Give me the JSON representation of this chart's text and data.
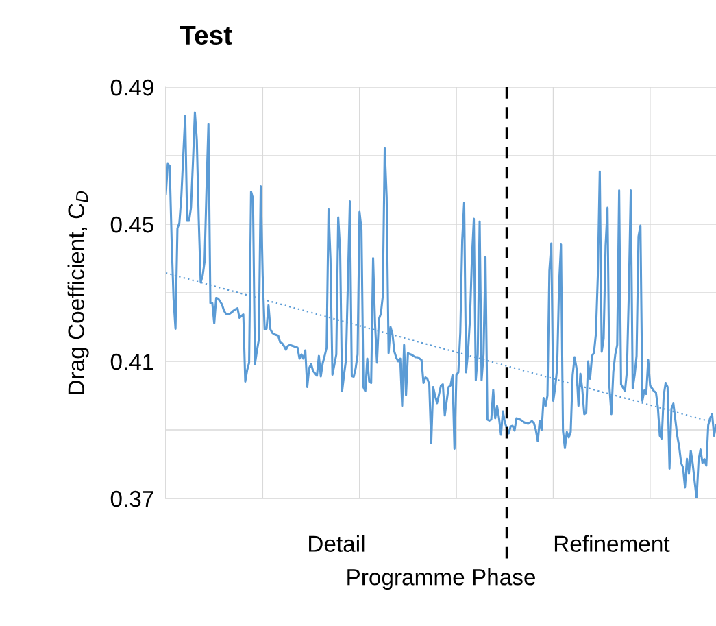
{
  "chart_data": {
    "type": "line",
    "title": "Test",
    "xlabel": "Programme Phase",
    "ylabel": "Drag Coefficient, C$_{D}$",
    "categories": [
      null,
      null,
      null,
      null,
      null,
      null,
      null,
      null,
      null,
      null,
      null,
      null,
      null,
      null,
      null,
      null,
      null,
      null,
      null,
      null,
      null,
      null,
      null,
      null,
      null,
      null,
      null,
      null,
      null,
      null,
      null,
      null,
      null,
      null,
      null,
      null,
      null,
      null,
      null,
      null,
      null,
      null,
      null,
      null,
      null,
      null,
      null,
      null,
      null,
      null,
      null,
      null,
      null,
      null,
      null,
      null,
      null,
      null,
      null,
      null,
      null,
      null,
      null,
      null,
      null,
      null,
      null,
      null,
      null,
      null,
      null,
      null,
      null,
      null,
      null,
      null,
      null,
      null,
      null,
      null,
      null,
      null,
      null,
      null,
      null,
      null,
      null,
      null,
      null,
      null,
      null,
      null,
      null,
      null,
      null,
      null,
      null,
      null,
      null,
      null,
      null,
      null,
      null,
      null,
      null,
      null,
      null,
      null,
      null,
      null,
      null,
      null,
      null,
      null,
      null,
      null,
      null,
      null,
      null,
      null,
      null,
      null,
      null,
      null,
      null,
      null,
      null,
      null,
      null,
      null,
      null,
      null,
      null,
      null,
      null,
      null,
      null,
      null,
      null,
      null,
      null,
      null,
      null,
      null,
      null,
      null,
      null,
      null,
      null,
      null,
      null,
      null,
      null,
      null,
      null,
      null,
      null,
      null,
      null,
      null,
      null,
      null,
      null,
      null,
      null,
      null,
      null,
      null,
      null,
      null,
      null,
      null,
      null,
      null,
      null,
      null,
      null,
      null,
      null,
      null,
      null,
      null,
      null,
      null,
      null,
      null,
      null,
      null,
      null,
      null,
      null,
      null,
      null,
      null,
      null,
      null,
      null,
      null,
      null,
      null,
      null,
      null,
      null,
      null,
      null,
      null,
      null,
      null,
      null,
      null,
      null,
      null,
      null,
      null,
      null,
      null,
      null,
      null,
      null,
      null,
      null,
      null,
      null,
      null,
      null,
      null,
      null,
      null,
      null,
      null,
      null,
      null,
      null,
      null,
      null,
      null,
      null,
      null,
      null,
      null,
      null,
      null,
      null,
      null,
      null,
      null,
      null,
      null,
      null,
      null,
      null,
      null,
      null,
      null,
      null,
      null,
      null,
      null,
      null,
      null,
      null,
      null,
      null,
      null,
      null,
      null,
      null,
      null,
      null,
      null,
      null,
      null,
      null,
      null,
      null,
      null,
      null,
      null,
      null,
      null,
      null,
      null,
      null,
      null,
      null
    ],
    "ylim": [
      0.37,
      0.49
    ],
    "yticks": [
      0.37,
      {
        "value": 0.39,
        "label": null
      },
      0.41,
      {
        "value": 0.43,
        "label": null
      },
      0.45,
      {
        "value": 0.47,
        "label": null
      },
      0.49
    ],
    "grid": true,
    "tick_labels": "y",
    "annotations": [
      "Detail",
      "Refinement"
    ],
    "ref_lines": [
      {
        "axis": "x",
        "color": "#000000",
        "line_style": "dashed"
      }
    ],
    "series": [
      {
        "color": "#5b9bd5",
        "line_style": "solid",
        "values": [
          0.4587,
          0.4676,
          0.467,
          0.4453,
          0.4282,
          0.4195,
          0.4488,
          0.4504,
          0.4579,
          0.47,
          0.4817,
          0.451,
          0.451,
          0.4548,
          0.468,
          0.4826,
          0.4746,
          0.4512,
          0.433,
          0.435,
          0.439,
          0.46,
          0.4792,
          0.427,
          0.427,
          0.4211,
          0.4285,
          0.4283,
          0.4275,
          0.4266,
          0.4248,
          0.4239,
          0.4239,
          0.4239,
          0.4243,
          0.4248,
          0.4252,
          0.4255,
          0.4227,
          0.4232,
          0.4237,
          0.4041,
          0.4075,
          0.4096,
          0.4595,
          0.4575,
          0.4092,
          0.413,
          0.4163,
          0.4611,
          0.435,
          0.4193,
          0.4195,
          0.4264,
          0.4193,
          0.4183,
          0.4179,
          0.4177,
          0.4175,
          0.4156,
          0.4153,
          0.4145,
          0.4134,
          0.4145,
          0.4148,
          0.4146,
          0.4144,
          0.4142,
          0.414,
          0.4108,
          0.412,
          0.4108,
          0.4132,
          0.4025,
          0.408,
          0.4092,
          0.4072,
          0.4065,
          0.4058,
          0.4116,
          0.4056,
          0.4095,
          0.4116,
          0.414,
          0.4544,
          0.4397,
          0.4061,
          0.409,
          0.412,
          0.452,
          0.4421,
          0.4013,
          0.4061,
          0.4104,
          0.433,
          0.4567,
          0.4057,
          0.4055,
          0.408,
          0.412,
          0.4536,
          0.4484,
          0.4025,
          0.4013,
          0.4108,
          0.4041,
          0.4037,
          0.4401,
          0.4211,
          0.4096,
          0.4223,
          0.4239,
          0.429,
          0.4722,
          0.4579,
          0.4124,
          0.42,
          0.4179,
          0.4128,
          0.411,
          0.41,
          0.4108,
          0.397,
          0.4148,
          0.4001,
          0.4124,
          0.4121,
          0.4119,
          0.4115,
          0.4112,
          0.4112,
          0.4108,
          0.4104,
          0.4037,
          0.4053,
          0.4049,
          0.4033,
          0.3861,
          0.4025,
          0.4,
          0.3978,
          0.4003,
          0.4029,
          0.4033,
          0.3942,
          0.3985,
          0.4025,
          0.403,
          0.406,
          0.3845,
          0.406,
          0.4068,
          0.4183,
          0.4453,
          0.4563,
          0.4068,
          0.4128,
          0.4223,
          0.44,
          0.4516,
          0.4045,
          0.412,
          0.4508,
          0.4045,
          0.412,
          0.4405,
          0.393,
          0.3927,
          0.393,
          0.4017,
          0.3934,
          0.397,
          0.3934,
          0.3886,
          0.3954,
          0.3922,
          0.3905,
          0.389,
          0.391,
          0.3912,
          0.3898,
          0.3934,
          0.3932,
          0.393,
          0.3926,
          0.3922,
          0.392,
          0.3918,
          0.3922,
          0.3926,
          0.392,
          0.39,
          0.3867,
          0.3926,
          0.39,
          0.3993,
          0.3969,
          0.4,
          0.4365,
          0.4444,
          0.3985,
          0.4025,
          0.408,
          0.4326,
          0.4441,
          0.3898,
          0.3847,
          0.3894,
          0.3878,
          0.3894,
          0.406,
          0.4112,
          0.408,
          0.397,
          0.4064,
          0.4017,
          0.3946,
          0.395,
          0.41,
          0.4049,
          0.4116,
          0.4125,
          0.418,
          0.435,
          0.4654,
          0.4128,
          0.4167,
          0.4437,
          0.4548,
          0.4025,
          0.3946,
          0.407,
          0.412,
          0.4148,
          0.4599,
          0.4033,
          0.4023,
          0.4013,
          0.407,
          0.43,
          0.4599,
          0.4021,
          0.406,
          0.4116,
          0.4464,
          0.4496,
          0.3985,
          0.4015,
          0.4005,
          0.4104,
          0.4029,
          0.4021,
          0.4013,
          0.4009,
          0.3966,
          0.3883,
          0.3875,
          0.4,
          0.4037,
          0.4025,
          0.3787,
          0.3962,
          0.3977,
          0.393,
          0.3883,
          0.3851,
          0.3804,
          0.379,
          0.3732,
          0.3816,
          0.3772,
          0.3839,
          0.38,
          0.3748,
          0.37,
          0.3811,
          0.3843,
          0.3804,
          0.3815,
          0.3796,
          0.3914,
          0.3935,
          0.3946,
          0.3883,
          0.3914
        ]
      },
      {
        "type": "line",
        "color": "#5b9bd5",
        "line_style": "dotted",
        "values": [
          0.4358,
          null,
          null,
          null,
          null,
          null,
          null,
          null,
          null,
          null,
          null,
          null,
          null,
          null,
          null,
          null,
          null,
          null,
          null,
          null,
          null,
          null,
          null,
          null,
          null,
          null,
          null,
          null,
          null,
          null,
          null,
          null,
          null,
          null,
          null,
          null,
          null,
          null,
          null,
          null,
          null,
          null,
          null,
          null,
          null,
          null,
          null,
          null,
          null,
          null,
          null,
          null,
          null,
          null,
          null,
          null,
          null,
          null,
          null,
          null,
          null,
          null,
          null,
          null,
          null,
          null,
          null,
          null,
          null,
          null,
          null,
          null,
          null,
          null,
          null,
          null,
          null,
          null,
          null,
          null,
          null,
          null,
          null,
          null,
          null,
          null,
          null,
          null,
          null,
          null,
          null,
          null,
          null,
          null,
          null,
          null,
          null,
          null,
          null,
          null,
          null,
          null,
          null,
          null,
          null,
          null,
          null,
          null,
          null,
          null,
          null,
          null,
          null,
          null,
          null,
          null,
          null,
          null,
          null,
          null,
          null,
          null,
          null,
          null,
          null,
          null,
          null,
          null,
          null,
          null,
          null,
          null,
          null,
          null,
          null,
          null,
          null,
          null,
          null,
          null,
          null,
          null,
          null,
          null,
          null,
          null,
          null,
          null,
          null,
          null,
          null,
          null,
          null,
          null,
          null,
          null,
          null,
          null,
          null,
          null,
          null,
          null,
          null,
          null,
          null,
          null,
          null,
          null,
          null,
          null,
          null,
          null,
          null,
          null,
          null,
          null,
          null,
          null,
          null,
          null,
          null,
          null,
          null,
          null,
          null,
          null,
          null,
          null,
          null,
          null,
          null,
          null,
          null,
          null,
          null,
          null,
          null,
          null,
          null,
          null,
          null,
          null,
          null,
          null,
          null,
          null,
          null,
          null,
          null,
          null,
          null,
          null,
          null,
          null,
          null,
          null,
          null,
          null,
          null,
          null,
          null,
          null,
          null,
          null,
          null,
          null,
          null,
          null,
          null,
          null,
          null,
          null,
          null,
          null,
          null,
          null,
          null,
          null,
          null,
          null,
          null,
          null,
          null,
          null,
          null,
          null,
          null,
          null,
          null,
          null,
          null,
          null,
          null,
          null,
          null,
          null,
          null,
          null,
          null,
          null,
          null,
          null,
          null,
          null,
          null,
          null,
          null,
          null,
          null,
          null,
          null,
          null,
          null,
          null,
          null,
          null,
          null,
          null,
          null,
          null,
          null,
          null,
          null,
          null,
          0.392
        ]
      }
    ]
  }
}
